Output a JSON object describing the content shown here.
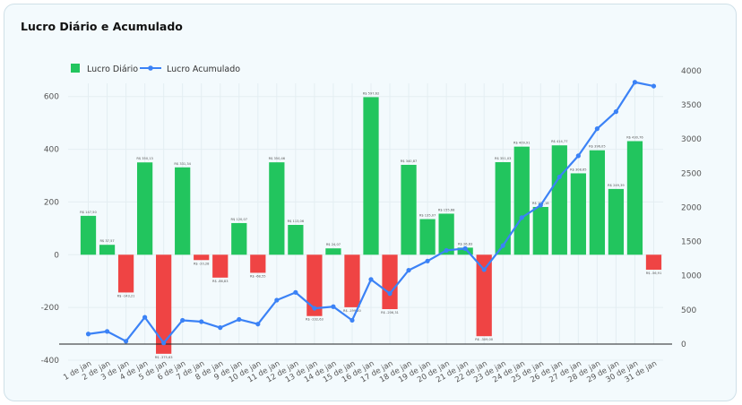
{
  "chart_data": {
    "type": "bar",
    "title": "Lucro Diário e Acumulado",
    "xlabel": "",
    "ylabel": "",
    "categories": [
      "1 de jan",
      "2 de jan",
      "3 de jan",
      "4 de jan",
      "5 de jan",
      "6 de jan",
      "7 de jan",
      "8 de jan",
      "9 de jan",
      "10 de jan",
      "11 de jan",
      "12 de jan",
      "13 de jan",
      "14 de jan",
      "15 de jan",
      "16 de jan",
      "17 de jan",
      "18 de jan",
      "19 de jan",
      "20 de jan",
      "21 de jan",
      "22 de jan",
      "23 de jan",
      "24 de jan",
      "25 de jan",
      "26 de jan",
      "27 de jan",
      "28 de jan",
      "29 de jan",
      "30 de jan",
      "31 de jan"
    ],
    "series": [
      {
        "name": "Lucro Diário",
        "type": "bar",
        "axis": "left",
        "values": [
          147.5,
          37.57,
          -143.21,
          350.13,
          -375.63,
          331.34,
          -20.28,
          -86.83,
          120.07,
          -68.55,
          350.46,
          113.06,
          -232.63,
          24.07,
          -199.2,
          597.62,
          -206.31,
          340.87,
          135.07,
          155.68,
          26.83,
          -309.0,
          351.03,
          409.91,
          181.18,
          414.77,
          308.65,
          396.05,
          249.39,
          430.76,
          -56.91
        ],
        "data_labels": [
          "R$ 147,50",
          "R$ 37,57",
          "R$ -143,21",
          "R$ 350,13",
          "R$ -375,63",
          "R$ 331,34",
          "R$ -20,28",
          "R$ -86,83",
          "R$ 120,07",
          "R$ -68,55",
          "R$ 350,46",
          "R$ 113,06",
          "R$ -232,63",
          "R$ 24,07",
          "R$ -199,20",
          "R$ 597,62",
          "R$ -206,31",
          "R$ 340,87",
          "R$ 135,07",
          "R$ 155,68",
          "R$ 26,83",
          "R$ -309,00",
          "R$ 351,03",
          "R$ 409,91",
          "R$ 181,18",
          "R$ 414,77",
          "R$ 308,65",
          "R$ 396,05",
          "R$ 249,39",
          "R$ 430,76",
          "R$ -56,91"
        ]
      },
      {
        "name": "Lucro Acumulado",
        "type": "line",
        "axis": "right",
        "values": [
          147.5,
          185.07,
          41.86,
          392.0,
          16.37,
          347.7,
          327.42,
          240.59,
          360.66,
          292.11,
          642.57,
          755.63,
          523.0,
          547.07,
          347.87,
          945.49,
          739.18,
          1080.05,
          1215.12,
          1370.8,
          1397.63,
          1088.63,
          1439.66,
          1849.57,
          2030.75,
          2445.52,
          2754.17,
          3150.22,
          3399.61,
          3830.37,
          3773.46
        ]
      }
    ],
    "y_left": {
      "range": [
        -400,
        650
      ],
      "ticks": [
        -400,
        -200,
        0,
        200,
        400,
        600
      ]
    },
    "y_right": {
      "range": [
        0,
        4050
      ],
      "ticks": [
        0,
        500,
        1000,
        1500,
        2000,
        2500,
        3000,
        3500,
        4000
      ]
    },
    "legend": {
      "position": "top-left"
    },
    "grid": true,
    "colors": {
      "positive": "#22c55e",
      "negative": "#ef4444",
      "line": "#3b82f6",
      "grid": "#e4eef2"
    }
  }
}
